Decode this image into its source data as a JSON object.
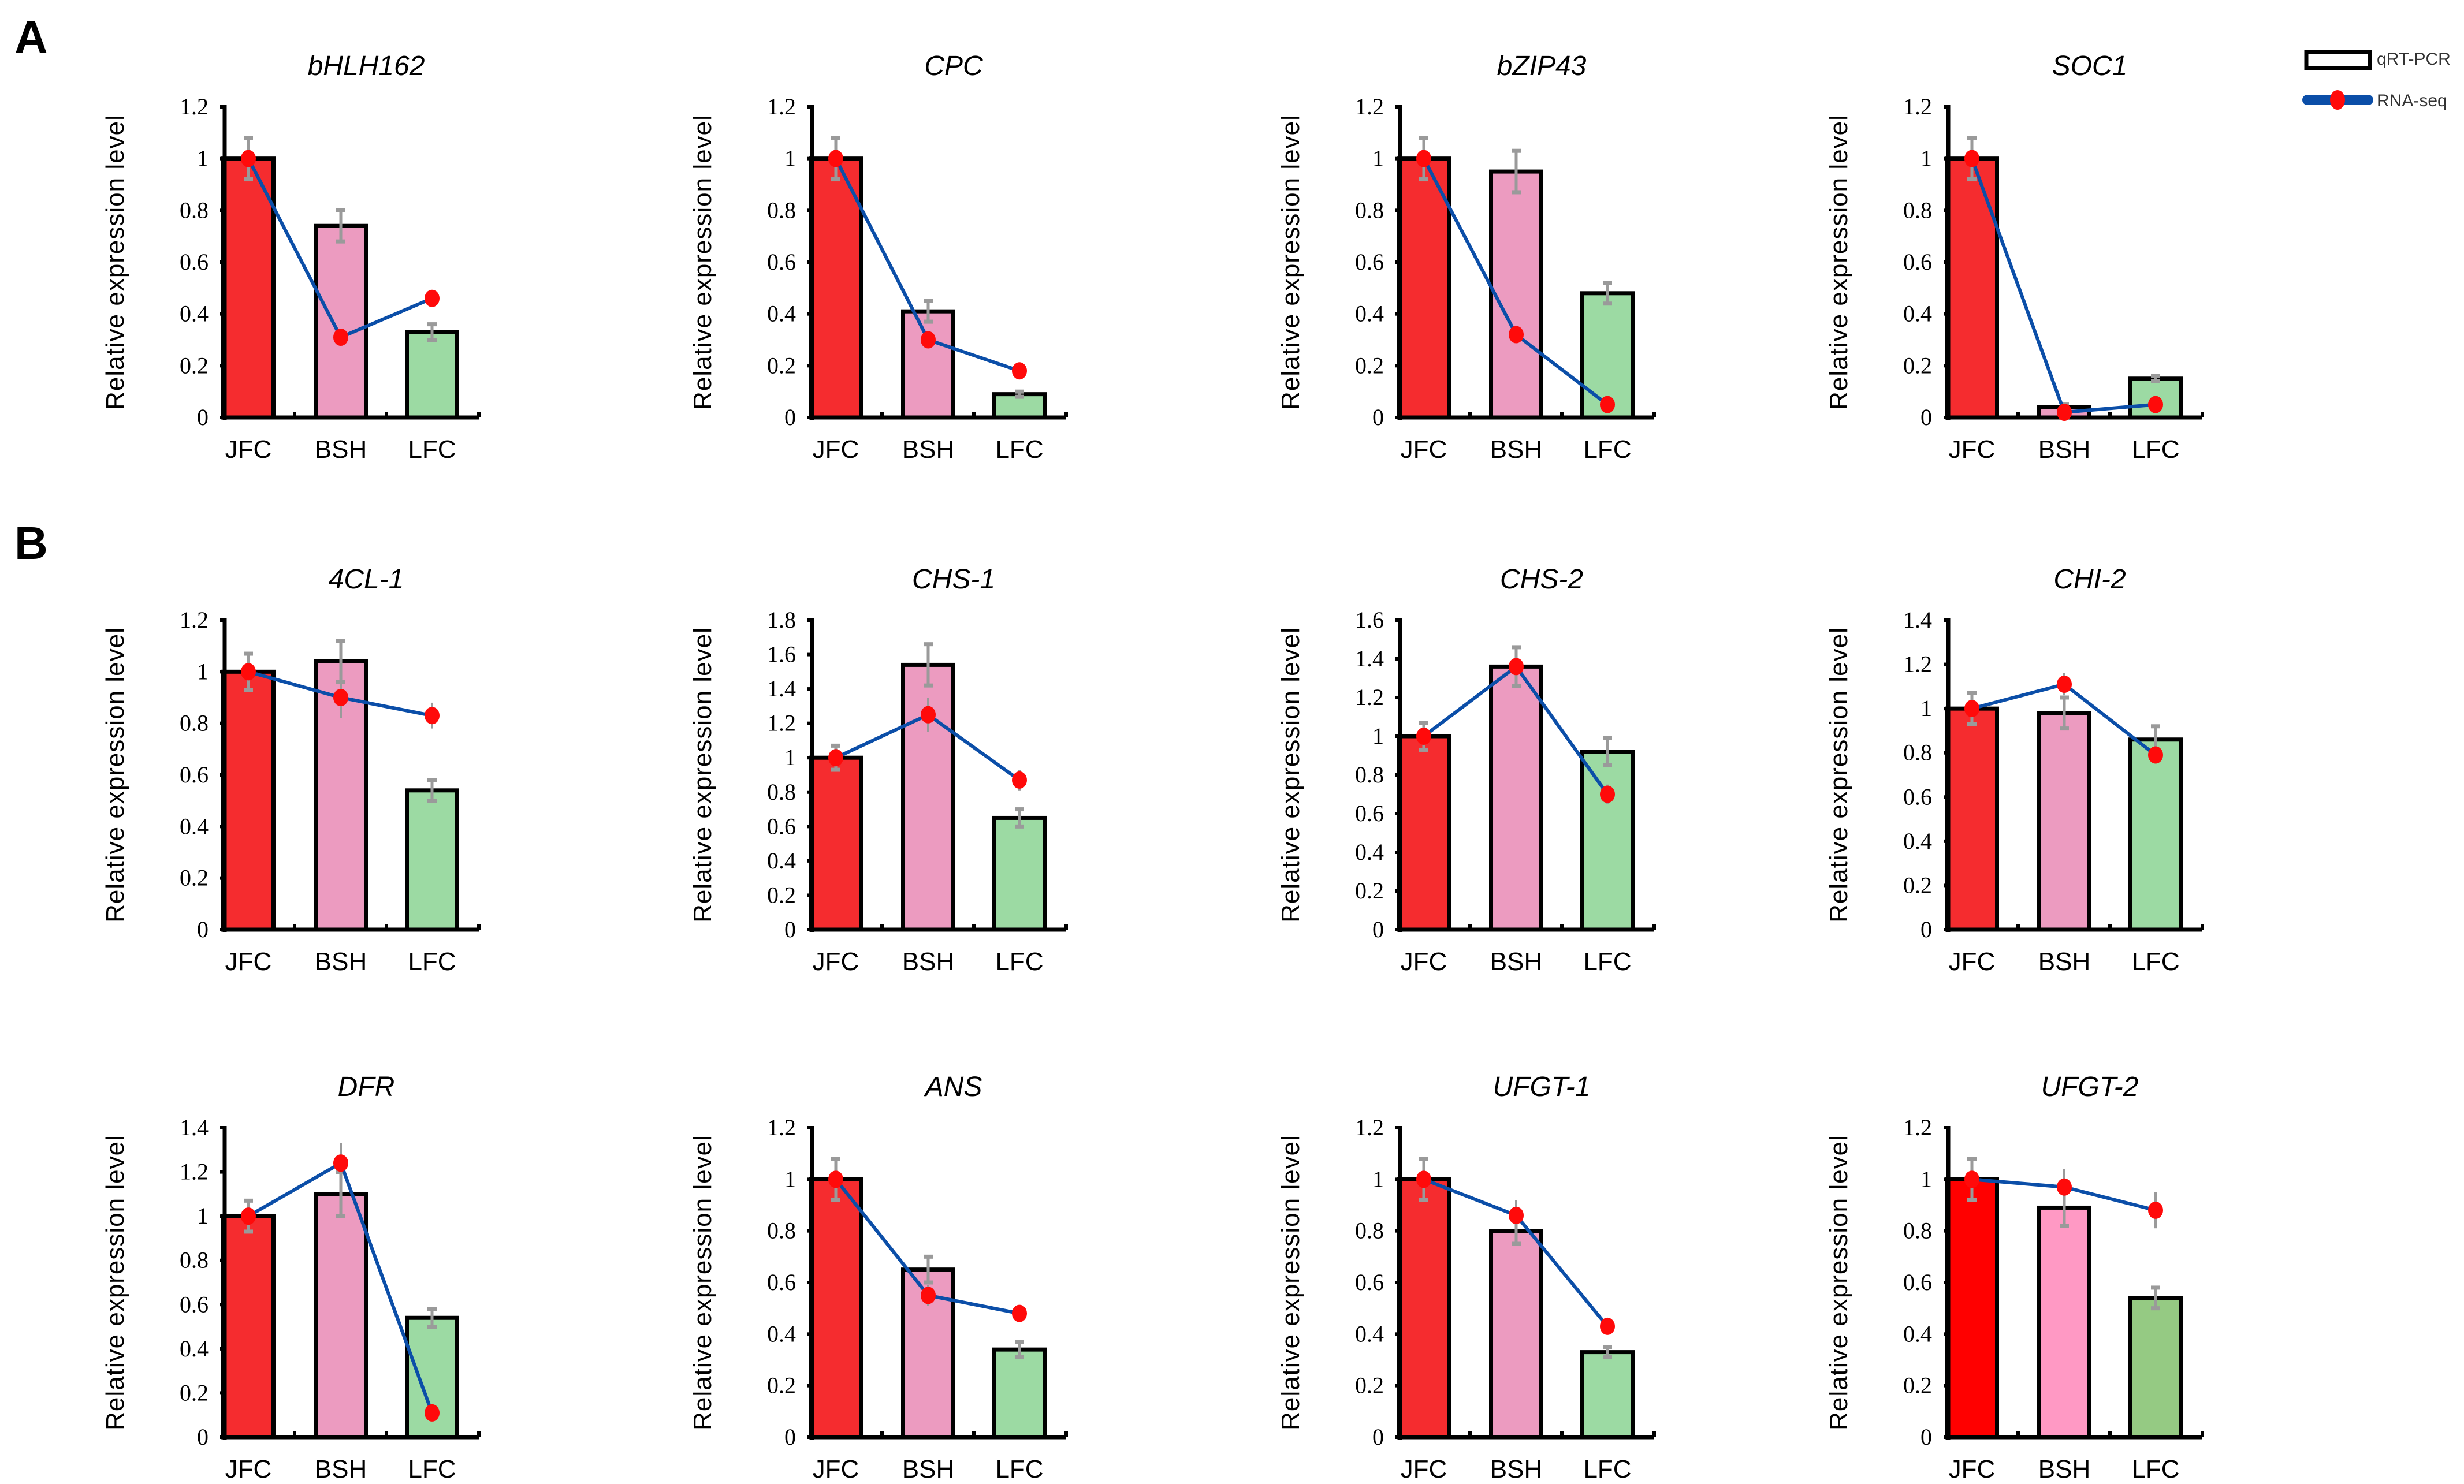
{
  "panels": [
    "A",
    "B"
  ],
  "legend": {
    "bar_label": "qRT-PCR",
    "line_label": "RNA-seq"
  },
  "colors": {
    "jfc": "#f52c2f",
    "bsh": "#ec9bc0",
    "lfc": "#9cdaa3",
    "jfc_alt": "#ff0000",
    "bsh_alt": "#ff99c4",
    "lfc_alt": "#95ca83",
    "line": "#0b4ea8",
    "dot": "#ff0a0a",
    "error": "#9a9a9a"
  },
  "chart_data": [
    {
      "type": "bar",
      "panel": "A",
      "title": "bHLH162",
      "ylabel": "Relative expression level",
      "categories": [
        "JFC",
        "BSH",
        "LFC"
      ],
      "ylim": [
        0,
        1.2
      ],
      "yticks": [
        "0",
        "0.2",
        "0.4",
        "0.6",
        "0.8",
        "1",
        "1.2"
      ],
      "series": [
        {
          "name": "qRT-PCR",
          "values": [
            1,
            0.74,
            0.33
          ],
          "errors": [
            0.08,
            0.06,
            0.03
          ]
        },
        {
          "name": "RNA-seq",
          "values": [
            1,
            0.31,
            0.46
          ],
          "errors": [
            0.08,
            0.02,
            0.03
          ]
        }
      ]
    },
    {
      "type": "bar",
      "panel": "A",
      "title": "CPC",
      "ylabel": "Relative expression level",
      "categories": [
        "JFC",
        "BSH",
        "LFC"
      ],
      "ylim": [
        0,
        1.2
      ],
      "yticks": [
        "0",
        "0.2",
        "0.4",
        "0.6",
        "0.8",
        "1",
        "1.2"
      ],
      "series": [
        {
          "name": "qRT-PCR",
          "values": [
            1,
            0.41,
            0.09
          ],
          "errors": [
            0.08,
            0.04,
            0.01
          ]
        },
        {
          "name": "RNA-seq",
          "values": [
            1,
            0.3,
            0.18
          ],
          "errors": [
            0.08,
            0.02,
            0.01
          ]
        }
      ]
    },
    {
      "type": "bar",
      "panel": "A",
      "title": "bZIP43",
      "ylabel": "Relative expression level",
      "categories": [
        "JFC",
        "BSH",
        "LFC"
      ],
      "ylim": [
        0,
        1.2
      ],
      "yticks": [
        "0",
        "0.2",
        "0.4",
        "0.6",
        "0.8",
        "1",
        "1.2"
      ],
      "series": [
        {
          "name": "qRT-PCR",
          "values": [
            1,
            0.95,
            0.48
          ],
          "errors": [
            0.08,
            0.08,
            0.04
          ]
        },
        {
          "name": "RNA-seq",
          "values": [
            1,
            0.32,
            0.05
          ],
          "errors": [
            0.08,
            0.02,
            0.01
          ]
        }
      ]
    },
    {
      "type": "bar",
      "panel": "A",
      "title": "SOC1",
      "ylabel": "Relative expression level",
      "categories": [
        "JFC",
        "BSH",
        "LFC"
      ],
      "ylim": [
        0,
        1.2
      ],
      "yticks": [
        "0",
        "0.2",
        "0.4",
        "0.6",
        "0.8",
        "1",
        "1.2"
      ],
      "series": [
        {
          "name": "qRT-PCR",
          "values": [
            1,
            0.04,
            0.15
          ],
          "errors": [
            0.08,
            0.01,
            0.01
          ]
        },
        {
          "name": "RNA-seq",
          "values": [
            1,
            0.02,
            0.05
          ],
          "errors": [
            0.08,
            0.01,
            0.01
          ]
        }
      ]
    },
    {
      "type": "bar",
      "panel": "B",
      "title": "4CL-1",
      "ylabel": "Relative expression level",
      "categories": [
        "JFC",
        "BSH",
        "LFC"
      ],
      "ylim": [
        0,
        1.2
      ],
      "yticks": [
        "0",
        "0.2",
        "0.4",
        "0.6",
        "0.8",
        "1",
        "1.2"
      ],
      "series": [
        {
          "name": "qRT-PCR",
          "values": [
            1,
            1.04,
            0.54
          ],
          "errors": [
            0.07,
            0.08,
            0.04
          ]
        },
        {
          "name": "RNA-seq",
          "values": [
            1,
            0.9,
            0.83
          ],
          "errors": [
            0.07,
            0.08,
            0.05
          ]
        }
      ]
    },
    {
      "type": "bar",
      "panel": "B",
      "title": "CHS-1",
      "ylabel": "Relative expression level",
      "categories": [
        "JFC",
        "BSH",
        "LFC"
      ],
      "ylim": [
        0,
        1.8
      ],
      "yticks": [
        "0",
        "0.2",
        "0.4",
        "0.6",
        "0.8",
        "1",
        "1.2",
        "1.4",
        "1.6",
        "1.8"
      ],
      "series": [
        {
          "name": "qRT-PCR",
          "values": [
            1,
            1.54,
            0.65
          ],
          "errors": [
            0.07,
            0.12,
            0.05
          ]
        },
        {
          "name": "RNA-seq",
          "values": [
            1,
            1.25,
            0.87
          ],
          "errors": [
            0.07,
            0.1,
            0.06
          ]
        }
      ]
    },
    {
      "type": "bar",
      "panel": "B",
      "title": "CHS-2",
      "ylabel": "Relative expression level",
      "categories": [
        "JFC",
        "BSH",
        "LFC"
      ],
      "ylim": [
        0,
        1.6
      ],
      "yticks": [
        "0",
        "0.2",
        "0.4",
        "0.6",
        "0.8",
        "1",
        "1.2",
        "1.4",
        "1.6"
      ],
      "series": [
        {
          "name": "qRT-PCR",
          "values": [
            1,
            1.36,
            0.92
          ],
          "errors": [
            0.07,
            0.1,
            0.07
          ]
        },
        {
          "name": "RNA-seq",
          "values": [
            1,
            1.36,
            0.7
          ],
          "errors": [
            0.07,
            0.08,
            0.05
          ]
        }
      ]
    },
    {
      "type": "bar",
      "panel": "B",
      "title": "CHI-2",
      "ylabel": "Relative expression level",
      "categories": [
        "JFC",
        "BSH",
        "LFC"
      ],
      "ylim": [
        0,
        1.4
      ],
      "yticks": [
        "0",
        "0.2",
        "0.4",
        "0.6",
        "0.8",
        "1",
        "1.2",
        "1.4"
      ],
      "series": [
        {
          "name": "qRT-PCR",
          "values": [
            1,
            0.98,
            0.86
          ],
          "errors": [
            0.07,
            0.07,
            0.06
          ]
        },
        {
          "name": "RNA-seq",
          "values": [
            1,
            1.11,
            0.79
          ],
          "errors": [
            0.07,
            0.05,
            0.03
          ]
        }
      ]
    },
    {
      "type": "bar",
      "panel": "B",
      "title": "DFR",
      "ylabel": "Relative expression level",
      "categories": [
        "JFC",
        "BSH",
        "LFC"
      ],
      "ylim": [
        0,
        1.4
      ],
      "yticks": [
        "0",
        "0.2",
        "0.4",
        "0.6",
        "0.8",
        "1",
        "1.2",
        "1.4"
      ],
      "series": [
        {
          "name": "qRT-PCR",
          "values": [
            1,
            1.1,
            0.54
          ],
          "errors": [
            0.07,
            0.1,
            0.04
          ]
        },
        {
          "name": "RNA-seq",
          "values": [
            1,
            1.24,
            0.11
          ],
          "errors": [
            0.07,
            0.09,
            0.01
          ]
        }
      ]
    },
    {
      "type": "bar",
      "panel": "B",
      "title": "ANS",
      "ylabel": "Relative expression level",
      "categories": [
        "JFC",
        "BSH",
        "LFC"
      ],
      "ylim": [
        0,
        1.2
      ],
      "yticks": [
        "0",
        "0.2",
        "0.4",
        "0.6",
        "0.8",
        "1",
        "1.2"
      ],
      "series": [
        {
          "name": "qRT-PCR",
          "values": [
            1,
            0.65,
            0.34
          ],
          "errors": [
            0.08,
            0.05,
            0.03
          ]
        },
        {
          "name": "RNA-seq",
          "values": [
            1,
            0.55,
            0.48
          ],
          "errors": [
            0.08,
            0.04,
            0.03
          ]
        }
      ]
    },
    {
      "type": "bar",
      "panel": "B",
      "title": "UFGT-1",
      "ylabel": "Relative expression level",
      "categories": [
        "JFC",
        "BSH",
        "LFC"
      ],
      "ylim": [
        0,
        1.2
      ],
      "yticks": [
        "0",
        "0.2",
        "0.4",
        "0.6",
        "0.8",
        "1",
        "1.2"
      ],
      "series": [
        {
          "name": "qRT-PCR",
          "values": [
            1,
            0.8,
            0.33
          ],
          "errors": [
            0.08,
            0.05,
            0.02
          ]
        },
        {
          "name": "RNA-seq",
          "values": [
            1,
            0.86,
            0.43
          ],
          "errors": [
            0.08,
            0.06,
            0.03
          ]
        }
      ]
    },
    {
      "type": "bar",
      "panel": "B",
      "title": "UFGT-2",
      "ylabel": "Relative expression level",
      "categories": [
        "JFC",
        "BSH",
        "LFC"
      ],
      "ylim": [
        0,
        1.2
      ],
      "yticks": [
        "0",
        "0.2",
        "0.4",
        "0.6",
        "0.8",
        "1",
        "1.2"
      ],
      "series": [
        {
          "name": "qRT-PCR",
          "values": [
            1,
            0.89,
            0.54
          ],
          "errors": [
            0.08,
            0.07,
            0.04
          ]
        },
        {
          "name": "RNA-seq",
          "values": [
            1,
            0.97,
            0.88
          ],
          "errors": [
            0.08,
            0.07,
            0.07
          ]
        }
      ],
      "alt_colors": true
    }
  ]
}
